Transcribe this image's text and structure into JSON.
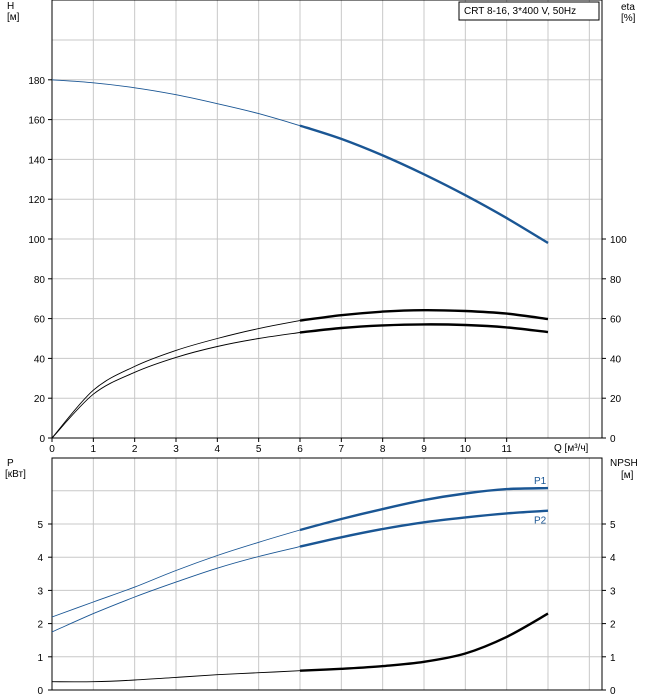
{
  "chart_data": [
    {
      "type": "line",
      "title": "CRT 8-16, 3*400 V, 50Hz",
      "left_axis": {
        "label": "H",
        "unit": "[м]",
        "ylim": [
          0,
          180
        ],
        "ticks": [
          "0",
          "20",
          "40",
          "60",
          "80",
          "100",
          "120",
          "140",
          "160",
          "180"
        ]
      },
      "right_axis": {
        "label": "eta",
        "unit": "[%]",
        "ylim": [
          0,
          100
        ],
        "ticks": [
          "0",
          "20",
          "40",
          "60",
          "80",
          "100"
        ]
      },
      "x_axis": {
        "label": "Q [м³/ч]",
        "xlim": [
          0,
          12
        ],
        "ticks": [
          "0",
          "1",
          "2",
          "3",
          "4",
          "5",
          "6",
          "7",
          "8",
          "9",
          "10",
          "11"
        ]
      },
      "grid": true,
      "series": [
        {
          "axis": "H",
          "color": "#1a5694",
          "x": [
            0,
            1,
            2,
            3,
            4,
            5,
            6,
            7,
            8,
            9,
            10,
            11,
            12
          ],
          "y": [
            180,
            178.5,
            176,
            172.5,
            168,
            163,
            157,
            150.3,
            142,
            132.5,
            122,
            110.5,
            98
          ]
        },
        {
          "axis": "eta",
          "color": "#000000",
          "x": [
            0,
            1,
            2,
            3,
            4,
            5,
            6,
            7,
            8,
            9,
            10,
            11,
            12
          ],
          "y": [
            0,
            24,
            36,
            44,
            50,
            55,
            59,
            61.7,
            63.5,
            64.2,
            63.8,
            62.5,
            59.8
          ]
        },
        {
          "axis": "eta",
          "color": "#000000",
          "x": [
            0,
            1,
            2,
            3,
            4,
            5,
            6,
            7,
            8,
            9,
            10,
            11,
            12
          ],
          "y": [
            0,
            22,
            33,
            40.5,
            46,
            50,
            53,
            55.3,
            56.6,
            57.1,
            56.8,
            55.6,
            53.2
          ]
        }
      ]
    },
    {
      "type": "line",
      "left_axis": {
        "label": "P",
        "unit": "[кВт]",
        "ylim": [
          0,
          6
        ],
        "ticks": [
          "0",
          "1",
          "2",
          "3",
          "4",
          "5"
        ]
      },
      "right_axis": {
        "label": "NPSH",
        "unit": "[м]",
        "ylim": [
          0,
          6
        ],
        "ticks": [
          "0",
          "1",
          "2",
          "3",
          "4",
          "5"
        ]
      },
      "x_axis": {
        "xlim": [
          0,
          12
        ]
      },
      "grid": true,
      "series": [
        {
          "name": "P1",
          "axis": "P",
          "color": "#1a5694",
          "x": [
            0,
            1,
            2,
            3,
            4,
            5,
            6,
            7,
            8,
            9,
            10,
            11,
            12
          ],
          "y": [
            2.2,
            2.65,
            3.1,
            3.6,
            4.05,
            4.45,
            4.82,
            5.15,
            5.45,
            5.72,
            5.92,
            6.05,
            6.08
          ]
        },
        {
          "name": "P2",
          "axis": "P",
          "color": "#1a5694",
          "x": [
            0,
            1,
            2,
            3,
            4,
            5,
            6,
            7,
            8,
            9,
            10,
            11,
            12
          ],
          "y": [
            1.75,
            2.3,
            2.8,
            3.25,
            3.67,
            4.02,
            4.32,
            4.6,
            4.85,
            5.05,
            5.2,
            5.32,
            5.4
          ]
        },
        {
          "axis": "NPSH",
          "color": "#000000",
          "x": [
            0,
            1,
            2,
            3,
            4,
            5,
            6,
            7,
            8,
            9,
            10,
            11,
            12
          ],
          "y": [
            0.25,
            0.25,
            0.3,
            0.38,
            0.46,
            0.52,
            0.58,
            0.64,
            0.72,
            0.85,
            1.1,
            1.6,
            2.3
          ]
        }
      ]
    }
  ]
}
